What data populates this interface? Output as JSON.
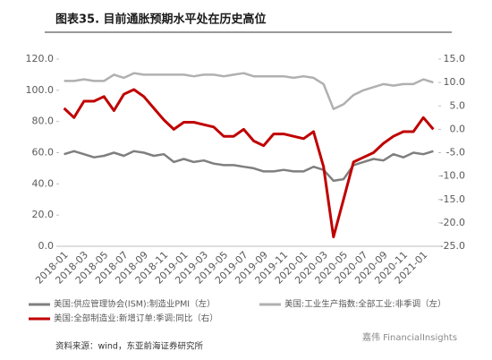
{
  "chart_data": {
    "type": "line",
    "title": "图表35. 目前通胀预期水平处在历史高位",
    "source": "资料来源：wind，东亚前海证券研究所",
    "watermark": "嘉伟 FinancialInsights",
    "categories": [
      "2018-01",
      null,
      "2018-03",
      null,
      "2018-05",
      null,
      "2018-07",
      null,
      "2018-09",
      null,
      "2018-11",
      null,
      "2019-01",
      null,
      "2019-03",
      null,
      "2019-05",
      null,
      "2019-07",
      null,
      "2019-09",
      null,
      "2019-11",
      null,
      "2020-01",
      null,
      "2020-03",
      null,
      "2020-05",
      null,
      "2020-07",
      null,
      "2020-09",
      null,
      "2020-11",
      null,
      "2021-01",
      null
    ],
    "ylim": [
      0,
      120
    ],
    "yticks": [
      {
        "value": 0,
        "label": "0.0"
      },
      {
        "value": 20,
        "label": "20.0"
      },
      {
        "value": 40,
        "label": "40.0"
      },
      {
        "value": 60,
        "label": "60.0"
      },
      {
        "value": 80,
        "label": "80.0"
      },
      {
        "value": 100,
        "label": "100.0"
      },
      {
        "value": 120,
        "label": "120.0"
      }
    ],
    "y2lim": [
      -25,
      15
    ],
    "y2ticks": [
      {
        "value": -25,
        "label": "-25.0"
      },
      {
        "value": -20,
        "label": "-20.0"
      },
      {
        "value": -15,
        "label": "-15.0"
      },
      {
        "value": -10,
        "label": "-10.0"
      },
      {
        "value": -5,
        "label": "-5.0"
      },
      {
        "value": 0,
        "label": "0.0"
      },
      {
        "value": 5,
        "label": "5.0"
      },
      {
        "value": 10,
        "label": "10.0"
      },
      {
        "value": 15,
        "label": "15.0"
      }
    ],
    "grid": false,
    "series": [
      {
        "name": "美国:供应管理协会(ISM):制造业PMI（左）",
        "color": "#7f7f7f",
        "axis": "y",
        "values": [
          59,
          61,
          59,
          57,
          58,
          60,
          58,
          61,
          60,
          58,
          59,
          54,
          56,
          54,
          55,
          53,
          52,
          52,
          51,
          50,
          48,
          48,
          49,
          48,
          48,
          51,
          49,
          42,
          43,
          52,
          54,
          56,
          55,
          59,
          57,
          60,
          59,
          61
        ]
      },
      {
        "name": "美国:工业生产指数:全部工业:非季调（左）",
        "color": "#b0b0b0",
        "axis": "y",
        "values": [
          106,
          106,
          107,
          106,
          106,
          110,
          108,
          111,
          110,
          110,
          110,
          110,
          110,
          109,
          110,
          110,
          109,
          110,
          111,
          109,
          109,
          109,
          109,
          108,
          109,
          108,
          104,
          88,
          91,
          97,
          100,
          102,
          104,
          103,
          104,
          104,
          107,
          105
        ]
      },
      {
        "name": "美国:全部制造业:新增订单:季调:同比（右）",
        "color": "#c00000",
        "axis": "y2",
        "values": [
          4.5,
          2.5,
          6,
          6,
          7,
          4,
          7.5,
          8.5,
          7,
          4.5,
          2,
          0,
          1.5,
          1.5,
          1,
          0.5,
          -1.5,
          -1.5,
          0,
          -2.5,
          -3.5,
          -1,
          -1,
          -1.5,
          -2,
          -0.5,
          -8,
          -23,
          -15,
          -7,
          -6,
          -5,
          -3,
          -1.5,
          -0.5,
          -0.5,
          2.5,
          0
        ]
      }
    ]
  }
}
